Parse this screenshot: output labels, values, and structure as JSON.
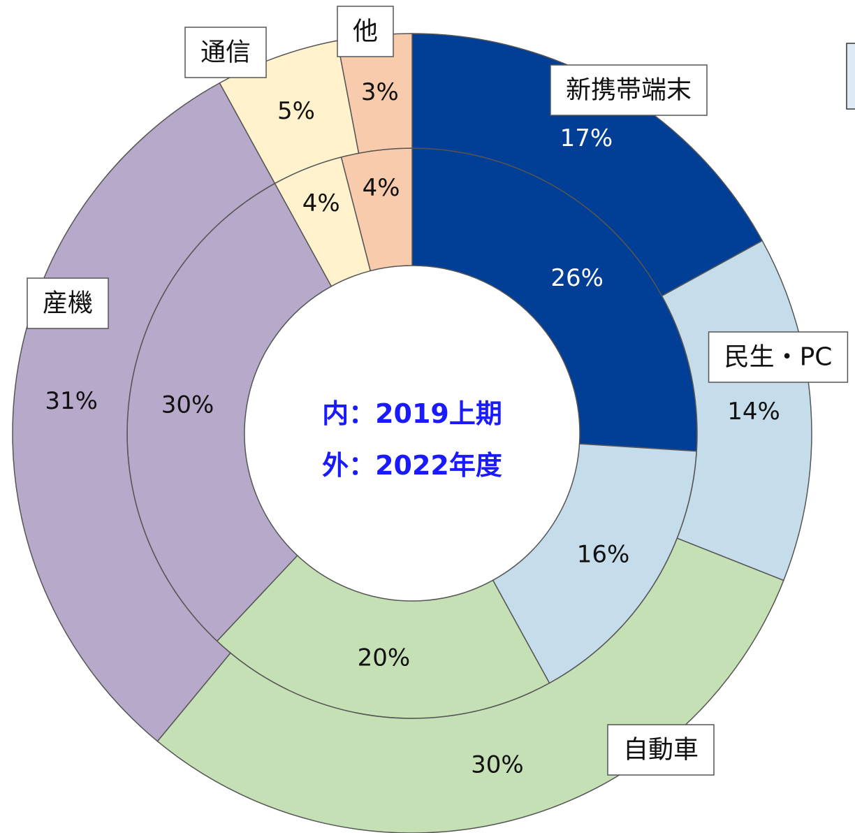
{
  "chart_data": {
    "type": "donut",
    "categories": [
      "新携帯端末",
      "民生・PC",
      "自動車",
      "産機",
      "通信",
      "他"
    ],
    "colors": [
      "#003f95",
      "#c5dcea",
      "#c5e0b4",
      "#b7a9c9",
      "#fff2cc",
      "#f8cbad"
    ],
    "series": [
      {
        "name": "内：2019上期",
        "values": [
          26,
          16,
          20,
          30,
          4,
          4
        ],
        "value_labels": [
          "26%",
          "16%",
          "20%",
          "30%",
          "4%",
          "4%"
        ]
      },
      {
        "name": "外：2022年度",
        "values": [
          17,
          14,
          30,
          31,
          5,
          3
        ],
        "value_labels": [
          "17%",
          "14%",
          "30%",
          "31%",
          "5%",
          "3%"
        ]
      }
    ]
  }
}
